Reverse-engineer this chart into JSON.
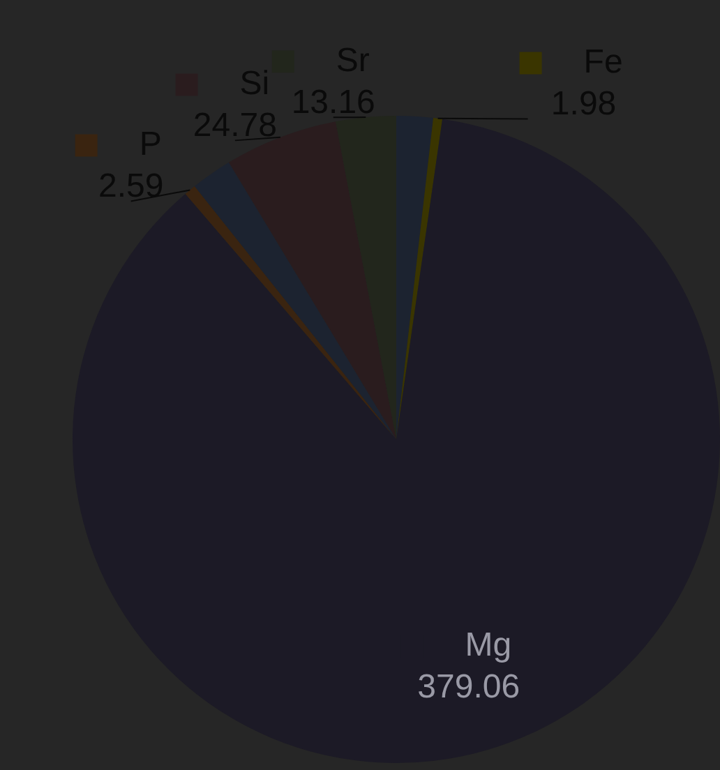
{
  "chart_data": {
    "type": "pie",
    "categories": [
      null,
      "Fe",
      "Mg",
      "P",
      null,
      "Si",
      "Sr"
    ],
    "values": [
      8,
      1.98,
      379.06,
      2.59,
      9,
      24.78,
      13.16
    ],
    "value_labels": [
      null,
      "1.98",
      "379.06",
      "2.59",
      null,
      "24.78",
      "13.16"
    ],
    "colors": [
      "#1c2330",
      "#3a3500",
      "#1c1a26",
      "#3a2410",
      "#1c2330",
      "#2a1c1e",
      "#22261c"
    ],
    "legend": "top"
  }
}
